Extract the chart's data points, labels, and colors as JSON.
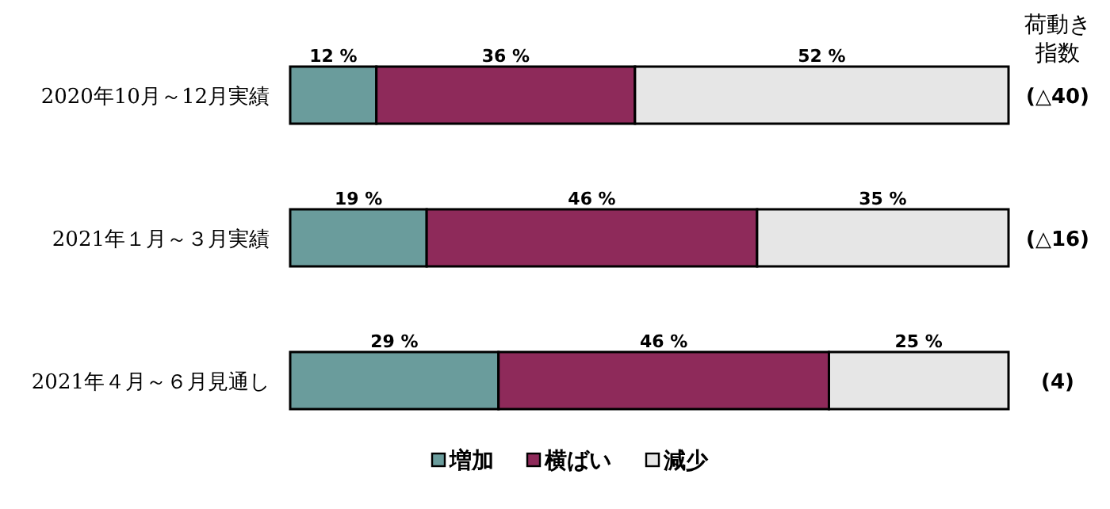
{
  "chart_data": {
    "type": "bar",
    "orientation": "horizontal",
    "stacked": true,
    "legend": "bottom",
    "categories": [
      "2020年10月～12月実績",
      "2021年１月～３月実績",
      "2021年４月～６月見通し"
    ],
    "xlim": [
      0,
      100
    ],
    "tick_labels": "y",
    "series": [
      {
        "name": "増加",
        "color": "#6a9c9c",
        "values": [
          12,
          19,
          29
        ],
        "value_labels": [
          "12 %",
          "19 %",
          "29 %"
        ]
      },
      {
        "name": "横ばい",
        "color": "#8e2a5a",
        "values": [
          36,
          46,
          46
        ],
        "value_labels": [
          "36 %",
          "46 %",
          "46 %"
        ]
      },
      {
        "name": "減少",
        "color": "#e6e6e6",
        "values": [
          52,
          35,
          25
        ],
        "value_labels": [
          "52 %",
          "35 %",
          "25 %"
        ]
      }
    ],
    "annotations": [
      "荷動き指数",
      "(△40)",
      "(△16)",
      "(4)"
    ]
  }
}
